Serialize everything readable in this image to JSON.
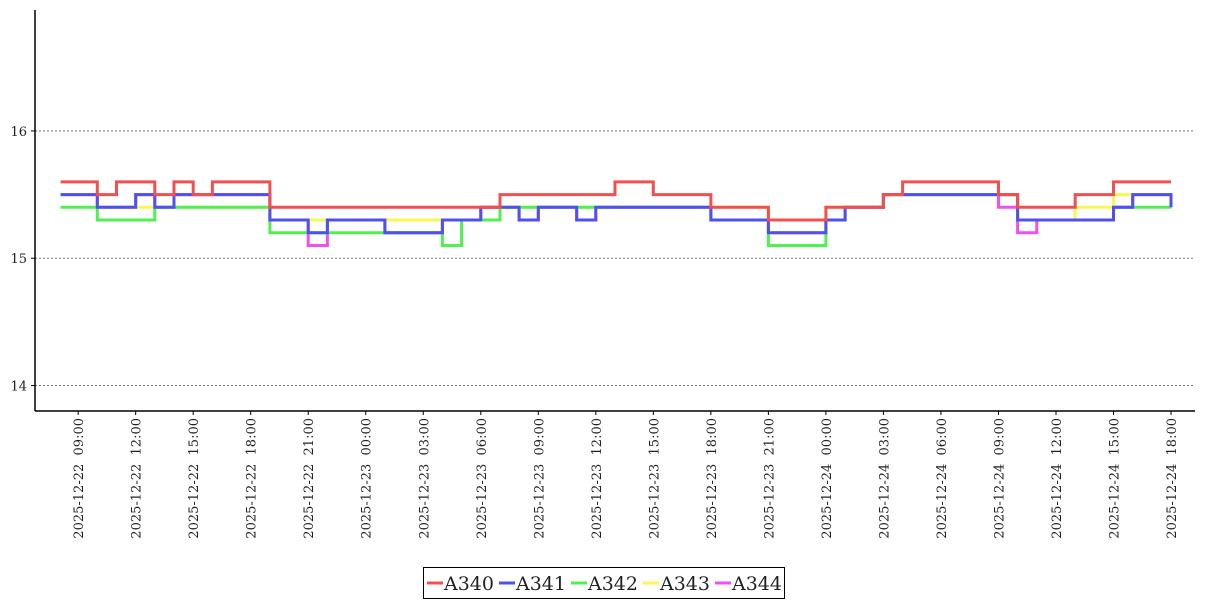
{
  "chart_data": {
    "type": "line",
    "title": "",
    "xlabel": "",
    "ylabel": "",
    "ylim": [
      13.8,
      16.95
    ],
    "xlim": [
      "2025-12-22T06:45",
      "2025-12-24T19:15"
    ],
    "grid": "horizontal dotted",
    "legend_position": "bottom-center",
    "y_ticks": [
      {
        "value": 14,
        "label": "14"
      },
      {
        "value": 15,
        "label": "15"
      },
      {
        "value": 16,
        "label": "16"
      }
    ],
    "x_ticks": [
      {
        "value": "2025-12-22T09:00",
        "label": "2025-12-22  09:00"
      },
      {
        "value": "2025-12-22T12:00",
        "label": "2025-12-22  12:00"
      },
      {
        "value": "2025-12-22T15:00",
        "label": "2025-12-22  15:00"
      },
      {
        "value": "2025-12-22T18:00",
        "label": "2025-12-22  18:00"
      },
      {
        "value": "2025-12-22T21:00",
        "label": "2025-12-22  21:00"
      },
      {
        "value": "2025-12-23T00:00",
        "label": "2025-12-23  00:00"
      },
      {
        "value": "2025-12-23T03:00",
        "label": "2025-12-23  03:00"
      },
      {
        "value": "2025-12-23T06:00",
        "label": "2025-12-23  06:00"
      },
      {
        "value": "2025-12-23T09:00",
        "label": "2025-12-23  09:00"
      },
      {
        "value": "2025-12-23T12:00",
        "label": "2025-12-23  12:00"
      },
      {
        "value": "2025-12-23T15:00",
        "label": "2025-12-23  15:00"
      },
      {
        "value": "2025-12-23T18:00",
        "label": "2025-12-23  18:00"
      },
      {
        "value": "2025-12-23T21:00",
        "label": "2025-12-23  21:00"
      },
      {
        "value": "2025-12-24T00:00",
        "label": "2025-12-24  00:00"
      },
      {
        "value": "2025-12-24T03:00",
        "label": "2025-12-24  03:00"
      },
      {
        "value": "2025-12-24T06:00",
        "label": "2025-12-24  06:00"
      },
      {
        "value": "2025-12-24T09:00",
        "label": "2025-12-24  09:00"
      },
      {
        "value": "2025-12-24T12:00",
        "label": "2025-12-24  12:00"
      },
      {
        "value": "2025-12-24T15:00",
        "label": "2025-12-24  15:00"
      },
      {
        "value": "2025-12-24T18:00",
        "label": "2025-12-24  18:00"
      }
    ],
    "x_start": "2025-12-22T08:00",
    "x_step_hours": 1,
    "series": [
      {
        "name": "A340",
        "color": "#f05050",
        "values": [
          15.6,
          15.6,
          15.5,
          15.6,
          15.6,
          15.5,
          15.6,
          15.5,
          15.6,
          15.6,
          15.6,
          15.4,
          15.4,
          15.4,
          15.4,
          15.4,
          15.4,
          15.4,
          15.4,
          15.4,
          15.4,
          15.4,
          15.4,
          15.5,
          15.5,
          15.5,
          15.5,
          15.5,
          15.5,
          15.6,
          15.6,
          15.5,
          15.5,
          15.5,
          15.4,
          15.4,
          15.4,
          15.3,
          15.3,
          15.3,
          15.4,
          15.4,
          15.4,
          15.5,
          15.6,
          15.6,
          15.6,
          15.6,
          15.6,
          15.5,
          15.4,
          15.4,
          15.4,
          15.5,
          15.5,
          15.6,
          15.6,
          15.6,
          15.6
        ]
      },
      {
        "name": "A341",
        "color": "#5050f0",
        "values": [
          15.5,
          15.5,
          15.4,
          15.4,
          15.5,
          15.4,
          15.5,
          15.5,
          15.5,
          15.5,
          15.5,
          15.3,
          15.3,
          15.2,
          15.3,
          15.3,
          15.3,
          15.2,
          15.2,
          15.2,
          15.3,
          15.3,
          15.4,
          15.4,
          15.3,
          15.4,
          15.4,
          15.3,
          15.4,
          15.4,
          15.4,
          15.4,
          15.4,
          15.4,
          15.3,
          15.3,
          15.3,
          15.2,
          15.2,
          15.2,
          15.3,
          15.4,
          15.4,
          15.5,
          15.5,
          15.5,
          15.5,
          15.5,
          15.5,
          15.5,
          15.3,
          15.3,
          15.3,
          15.3,
          15.3,
          15.4,
          15.5,
          15.5,
          15.4
        ]
      },
      {
        "name": "A342",
        "color": "#50f050",
        "values": [
          15.4,
          15.4,
          15.3,
          15.3,
          15.3,
          15.4,
          15.4,
          15.4,
          15.4,
          15.4,
          15.4,
          15.2,
          15.2,
          15.2,
          15.2,
          15.2,
          15.2,
          15.2,
          15.2,
          15.2,
          15.1,
          15.3,
          15.3,
          15.4,
          15.4,
          15.4,
          15.4,
          15.4,
          15.4,
          15.4,
          15.4,
          15.4,
          15.4,
          15.4,
          15.3,
          15.3,
          15.3,
          15.1,
          15.1,
          15.1,
          15.3,
          15.4,
          15.4,
          15.5,
          15.5,
          15.5,
          15.5,
          15.5,
          15.5,
          15.5,
          15.3,
          15.3,
          15.3,
          15.3,
          15.3,
          15.4,
          15.4,
          15.4,
          15.4
        ]
      },
      {
        "name": "A343",
        "color": "#f8f850",
        "values": [
          15.5,
          15.5,
          15.4,
          15.4,
          15.4,
          15.4,
          15.4,
          15.4,
          15.4,
          15.4,
          15.4,
          15.3,
          15.3,
          15.3,
          15.3,
          15.3,
          15.3,
          15.3,
          15.3,
          15.3,
          15.3,
          15.3,
          15.3,
          15.4,
          15.4,
          15.4,
          15.4,
          15.4,
          15.4,
          15.4,
          15.4,
          15.4,
          15.4,
          15.4,
          15.4,
          15.4,
          15.4,
          15.2,
          15.2,
          15.2,
          15.4,
          15.4,
          15.4,
          15.5,
          15.5,
          15.5,
          15.5,
          15.5,
          15.5,
          15.5,
          15.3,
          15.3,
          15.3,
          15.4,
          15.4,
          15.5,
          15.5,
          15.5,
          15.5
        ]
      },
      {
        "name": "A344",
        "color": "#f050f0",
        "values": [
          15.5,
          15.5,
          15.4,
          15.4,
          15.5,
          15.4,
          15.5,
          15.5,
          15.5,
          15.5,
          15.5,
          15.3,
          15.3,
          15.1,
          15.3,
          15.3,
          15.3,
          15.2,
          15.2,
          15.2,
          15.3,
          15.3,
          15.4,
          15.4,
          15.3,
          15.4,
          15.4,
          15.3,
          15.4,
          15.4,
          15.4,
          15.4,
          15.4,
          15.4,
          15.3,
          15.3,
          15.3,
          15.2,
          15.2,
          15.2,
          15.3,
          15.4,
          15.4,
          15.5,
          15.5,
          15.5,
          15.5,
          15.5,
          15.5,
          15.4,
          15.2,
          15.3,
          15.3,
          15.3,
          15.3,
          15.4,
          15.5,
          15.5,
          15.4
        ]
      }
    ]
  }
}
